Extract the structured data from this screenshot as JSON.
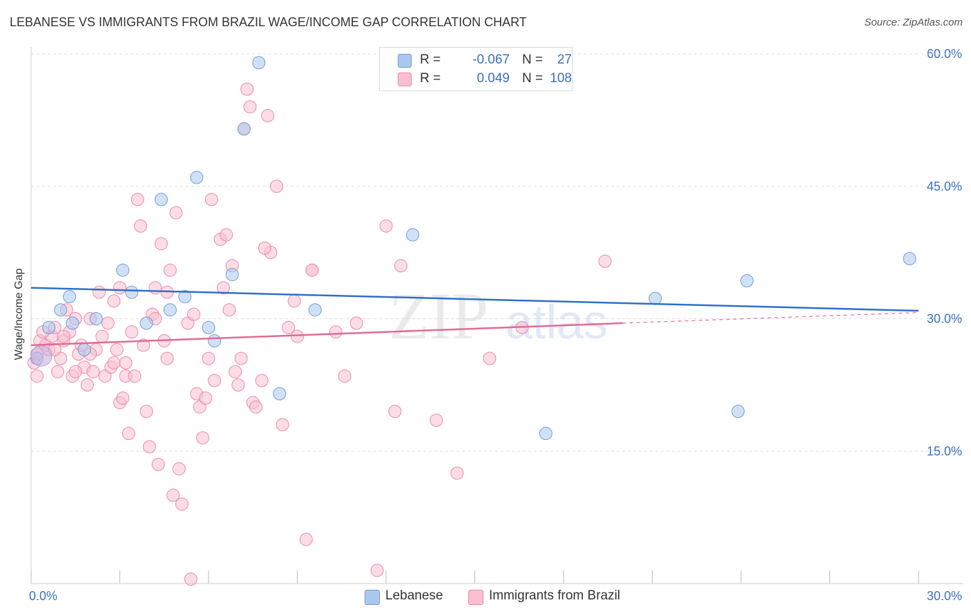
{
  "title": "LEBANESE VS IMMIGRANTS FROM BRAZIL WAGE/INCOME GAP CORRELATION CHART",
  "source": "Source: ZipAtlas.com",
  "watermark": {
    "zip": "ZIP",
    "atlas": "atlas"
  },
  "legend": {
    "r_label": "R =",
    "n_label": "N =",
    "rows": [
      {
        "r": "-0.067",
        "n": "27",
        "color": "#aac8ee",
        "edge": "#6f9bd6"
      },
      {
        "r": "0.049",
        "n": "108",
        "color": "#f9bfd0",
        "edge": "#e98aa6"
      }
    ]
  },
  "bottom_legend": [
    "Lebanese",
    "Immigrants from Brazil"
  ],
  "chart_data": {
    "type": "scatter",
    "title": "LEBANESE VS IMMIGRANTS FROM BRAZIL WAGE/INCOME GAP CORRELATION CHART",
    "xlabel": "",
    "ylabel": "Wage/Income Gap",
    "xlim": [
      0,
      30
    ],
    "ylim": [
      0,
      60
    ],
    "x_tick_labels": [
      "0.0%",
      "30.0%"
    ],
    "y_ticks": [
      15,
      30,
      45,
      60
    ],
    "y_tick_labels": [
      "15.0%",
      "30.0%",
      "45.0%",
      "60.0%"
    ],
    "grid": true,
    "legend_position": "top-center",
    "series": [
      {
        "name": "Lebanese",
        "color": "#aac8ee",
        "edge": "#6f9bd6",
        "trend": {
          "x": [
            0,
            30
          ],
          "y": [
            33.5,
            30.9
          ],
          "color": "#2e6fcc"
        },
        "points": [
          [
            0.2,
            25.5
          ],
          [
            0.6,
            29.0
          ],
          [
            1.0,
            31.0
          ],
          [
            1.3,
            32.5
          ],
          [
            1.4,
            29.5
          ],
          [
            1.8,
            26.5
          ],
          [
            2.2,
            30.0
          ],
          [
            3.1,
            35.5
          ],
          [
            3.4,
            33.0
          ],
          [
            3.9,
            29.5
          ],
          [
            4.4,
            43.5
          ],
          [
            4.7,
            31.0
          ],
          [
            5.2,
            32.5
          ],
          [
            5.6,
            46.0
          ],
          [
            6.0,
            29.0
          ],
          [
            6.2,
            27.5
          ],
          [
            6.8,
            35.0
          ],
          [
            7.2,
            51.5
          ],
          [
            7.7,
            59.0
          ],
          [
            8.4,
            21.5
          ],
          [
            9.6,
            31.0
          ],
          [
            12.9,
            39.5
          ],
          [
            17.4,
            17.0
          ],
          [
            21.1,
            32.3
          ],
          [
            23.9,
            19.5
          ],
          [
            24.2,
            34.3
          ],
          [
            29.7,
            36.8
          ]
        ]
      },
      {
        "name": "Immigrants from Brazil",
        "color": "#f9bfd0",
        "edge": "#e98aa6",
        "trend": {
          "x": [
            0,
            20.0
          ],
          "y": [
            27.0,
            29.5
          ],
          "color": "#e06b95",
          "dash_x": [
            20.0,
            30
          ],
          "dash_y": [
            29.5,
            30.7
          ]
        },
        "points": [
          [
            0.1,
            25.0
          ],
          [
            0.2,
            26.0
          ],
          [
            0.2,
            23.5
          ],
          [
            0.3,
            27.5
          ],
          [
            0.5,
            27.0
          ],
          [
            0.6,
            26.5
          ],
          [
            0.7,
            28.0
          ],
          [
            0.8,
            29.0
          ],
          [
            0.9,
            24.0
          ],
          [
            1.0,
            25.5
          ],
          [
            1.1,
            27.5
          ],
          [
            1.2,
            31.0
          ],
          [
            1.3,
            28.5
          ],
          [
            1.4,
            23.5
          ],
          [
            1.5,
            30.0
          ],
          [
            1.6,
            26.0
          ],
          [
            1.7,
            27.0
          ],
          [
            1.8,
            24.5
          ],
          [
            1.9,
            22.5
          ],
          [
            2.0,
            30.0
          ],
          [
            2.1,
            24.0
          ],
          [
            2.2,
            26.5
          ],
          [
            2.3,
            33.0
          ],
          [
            2.4,
            28.0
          ],
          [
            2.5,
            23.5
          ],
          [
            2.6,
            29.5
          ],
          [
            2.7,
            24.5
          ],
          [
            2.8,
            32.0
          ],
          [
            2.9,
            26.5
          ],
          [
            3.0,
            20.5
          ],
          [
            3.1,
            21.0
          ],
          [
            3.2,
            23.5
          ],
          [
            3.3,
            17.0
          ],
          [
            3.4,
            28.5
          ],
          [
            3.5,
            23.5
          ],
          [
            3.6,
            43.5
          ],
          [
            3.7,
            40.5
          ],
          [
            3.8,
            27.0
          ],
          [
            3.9,
            19.5
          ],
          [
            4.0,
            15.5
          ],
          [
            4.1,
            30.5
          ],
          [
            4.2,
            33.5
          ],
          [
            4.3,
            13.5
          ],
          [
            4.4,
            38.5
          ],
          [
            4.5,
            27.5
          ],
          [
            4.6,
            25.5
          ],
          [
            4.7,
            35.5
          ],
          [
            4.8,
            10.0
          ],
          [
            4.9,
            42.0
          ],
          [
            5.0,
            13.0
          ],
          [
            5.1,
            9.0
          ],
          [
            5.3,
            29.5
          ],
          [
            5.4,
            0.5
          ],
          [
            5.6,
            21.5
          ],
          [
            5.7,
            20.0
          ],
          [
            5.8,
            16.5
          ],
          [
            5.9,
            21.0
          ],
          [
            6.0,
            25.5
          ],
          [
            6.1,
            43.5
          ],
          [
            6.2,
            23.0
          ],
          [
            6.4,
            39.0
          ],
          [
            6.5,
            33.5
          ],
          [
            6.6,
            39.5
          ],
          [
            6.8,
            36.0
          ],
          [
            7.0,
            22.5
          ],
          [
            7.1,
            25.5
          ],
          [
            7.2,
            51.5
          ],
          [
            7.3,
            56.0
          ],
          [
            7.4,
            54.0
          ],
          [
            7.5,
            20.5
          ],
          [
            7.6,
            20.0
          ],
          [
            7.8,
            23.0
          ],
          [
            8.0,
            53.0
          ],
          [
            8.1,
            37.5
          ],
          [
            8.3,
            45.0
          ],
          [
            8.5,
            18.0
          ],
          [
            8.7,
            29.0
          ],
          [
            9.0,
            28.0
          ],
          [
            9.3,
            5.0
          ],
          [
            9.5,
            35.5
          ],
          [
            10.3,
            28.5
          ],
          [
            10.6,
            23.5
          ],
          [
            11.0,
            29.5
          ],
          [
            11.7,
            1.5
          ],
          [
            12.0,
            40.5
          ],
          [
            12.3,
            19.5
          ],
          [
            12.5,
            36.0
          ],
          [
            13.7,
            18.5
          ],
          [
            14.4,
            12.5
          ],
          [
            15.5,
            25.5
          ],
          [
            16.6,
            29.0
          ],
          [
            19.4,
            36.5
          ],
          [
            6.7,
            31.0
          ],
          [
            7.9,
            38.0
          ],
          [
            4.2,
            30.0
          ],
          [
            2.0,
            26.0
          ],
          [
            1.1,
            28.0
          ],
          [
            3.0,
            33.5
          ],
          [
            5.5,
            30.5
          ],
          [
            0.4,
            28.5
          ],
          [
            8.9,
            32.0
          ],
          [
            9.5,
            35.5
          ],
          [
            6.9,
            24.0
          ],
          [
            2.8,
            25.0
          ],
          [
            4.6,
            33.0
          ],
          [
            1.5,
            24.0
          ],
          [
            3.2,
            25.0
          ],
          [
            0.8,
            26.5
          ]
        ]
      }
    ]
  }
}
